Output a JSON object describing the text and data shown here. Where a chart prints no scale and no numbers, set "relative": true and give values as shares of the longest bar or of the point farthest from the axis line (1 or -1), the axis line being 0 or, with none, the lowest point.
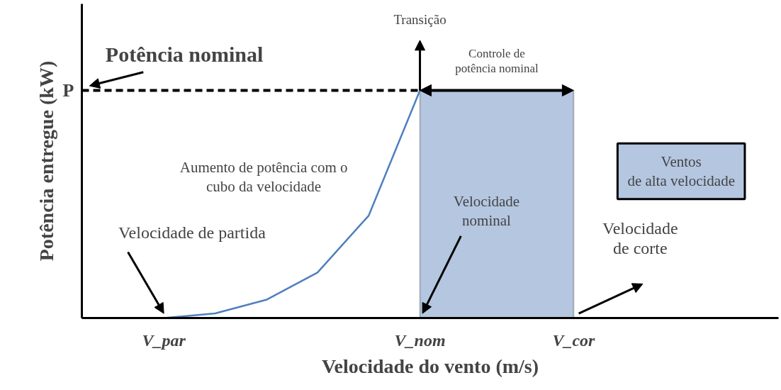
{
  "chart_data": {
    "type": "line",
    "relative": true,
    "xlabel": "Velocidade do vento (m/s)",
    "ylabel": "Potência entregue (kW)",
    "categories": [
      null,
      "V_par",
      null,
      null,
      null,
      null,
      "V_nom",
      null,
      null,
      "V_cor",
      null,
      null,
      null,
      null
    ],
    "series": [
      {
        "color": "#4f7fbf",
        "values": [
          null,
          0,
          0.02,
          0.08,
          0.2,
          0.45,
          1,
          null,
          null,
          null,
          null,
          null,
          null,
          null
        ]
      }
    ],
    "ref_lines": [
      {
        "axis": "y",
        "value": 1,
        "label": "P",
        "color": "#000000",
        "line_style": "dashed"
      }
    ],
    "bands": [
      {
        "axis": "x",
        "from": "V_nom",
        "to": "V_cor",
        "color": "#b4c6e0"
      }
    ],
    "annotations": [
      "Potência nominal",
      "Transição",
      "Controle de\npotência nominal",
      "Aumento de potência com o\ncubo da velocidade",
      "Ventos\nde alta velocidade",
      "Velocidade\nnominal",
      "Velocidade de partida",
      "Velocidade\nde corte"
    ],
    "grid": false,
    "marker": "none",
    "line_style": "solid"
  }
}
